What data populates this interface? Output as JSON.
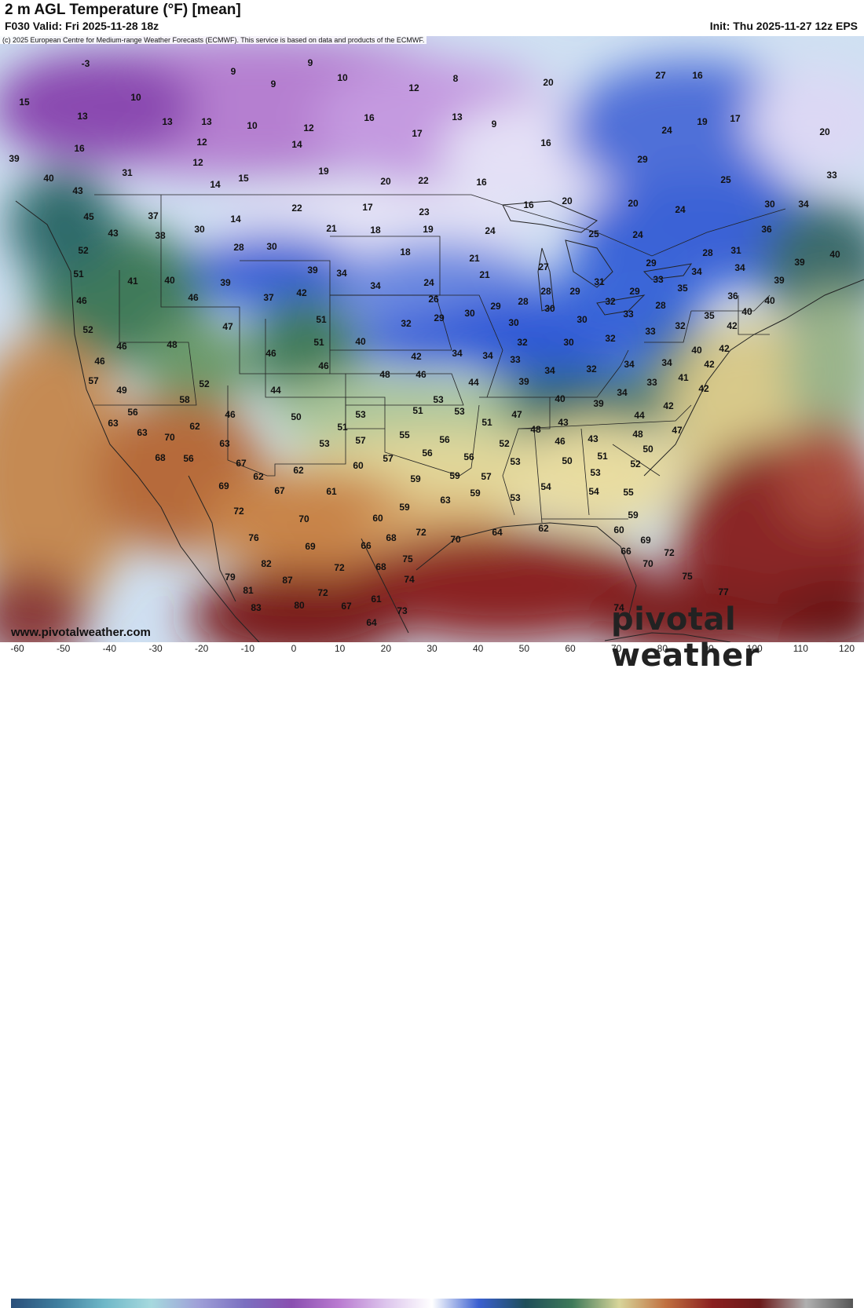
{
  "header": {
    "title": "2 m AGL Temperature (°F) [mean]",
    "valid": "F030 Valid: Fri 2025-11-28 18z",
    "init": "Init: Thu 2025-11-27 12z EPS",
    "copyright": "(c) 2025 European Centre for Medium-range Weather Forecasts (ECMWF). This service is based on data and products of the ECMWF."
  },
  "footer": {
    "website": "www.pivotalweather.com",
    "brand": "pivotal weather"
  },
  "colorbar": {
    "labels": [
      "-60",
      "-50",
      "-40",
      "-30",
      "-20",
      "-10",
      "0",
      "10",
      "20",
      "30",
      "40",
      "50",
      "60",
      "70",
      "80",
      "90",
      "100",
      "110",
      "120"
    ],
    "colors": [
      "#2a4f7a",
      "#3f7e9e",
      "#6fb8c8",
      "#a6d9de",
      "#9fa0d8",
      "#7b6fc0",
      "#8a4fb0",
      "#b97ad0",
      "#dcc4ec",
      "#ffffff",
      "#3a5fd0",
      "#1f4f5a",
      "#3f7a5a",
      "#d8d59a",
      "#c07040",
      "#8a2020",
      "#6a1a1a",
      "#b0b0b0",
      "#555555"
    ]
  },
  "map": {
    "points": [
      [
        "-3",
        109,
        82
      ],
      [
        "9",
        395,
        81
      ],
      [
        "8",
        580,
        101
      ],
      [
        "9",
        297,
        92
      ],
      [
        "10",
        436,
        100
      ],
      [
        "9",
        348,
        108
      ],
      [
        "20",
        698,
        106
      ],
      [
        "27",
        841,
        97
      ],
      [
        "16",
        888,
        97
      ],
      [
        "15",
        31,
        131
      ],
      [
        "10",
        173,
        125
      ],
      [
        "12",
        527,
        113
      ],
      [
        "13",
        105,
        149
      ],
      [
        "13",
        213,
        156
      ],
      [
        "13",
        263,
        156
      ],
      [
        "10",
        321,
        161
      ],
      [
        "12",
        393,
        164
      ],
      [
        "16",
        470,
        151
      ],
      [
        "17",
        531,
        171
      ],
      [
        "13",
        582,
        150
      ],
      [
        "9",
        629,
        159
      ],
      [
        "16",
        695,
        183
      ],
      [
        "24",
        849,
        167
      ],
      [
        "19",
        894,
        156
      ],
      [
        "17",
        936,
        152
      ],
      [
        "20",
        1050,
        169
      ],
      [
        "16",
        101,
        190
      ],
      [
        "12",
        257,
        182
      ],
      [
        "14",
        378,
        185
      ],
      [
        "39",
        18,
        203
      ],
      [
        "31",
        162,
        221
      ],
      [
        "12",
        252,
        208
      ],
      [
        "15",
        310,
        228
      ],
      [
        "14",
        274,
        236
      ],
      [
        "19",
        412,
        219
      ],
      [
        "20",
        491,
        232
      ],
      [
        "22",
        539,
        231
      ],
      [
        "16",
        613,
        233
      ],
      [
        "29",
        818,
        204
      ],
      [
        "25",
        924,
        230
      ],
      [
        "33",
        1059,
        224
      ],
      [
        "40",
        62,
        228
      ],
      [
        "43",
        99,
        244
      ],
      [
        "45",
        113,
        277
      ],
      [
        "37",
        195,
        276
      ],
      [
        "14",
        300,
        280
      ],
      [
        "22",
        378,
        266
      ],
      [
        "17",
        468,
        265
      ],
      [
        "23",
        540,
        271
      ],
      [
        "16",
        673,
        262
      ],
      [
        "20",
        722,
        257
      ],
      [
        "20",
        806,
        260
      ],
      [
        "24",
        866,
        268
      ],
      [
        "30",
        980,
        261
      ],
      [
        "34",
        1023,
        261
      ],
      [
        "43",
        144,
        298
      ],
      [
        "38",
        204,
        301
      ],
      [
        "30",
        254,
        293
      ],
      [
        "21",
        422,
        292
      ],
      [
        "18",
        478,
        294
      ],
      [
        "19",
        545,
        293
      ],
      [
        "24",
        624,
        295
      ],
      [
        "25",
        756,
        299
      ],
      [
        "24",
        812,
        300
      ],
      [
        "36",
        976,
        293
      ],
      [
        "52",
        106,
        320
      ],
      [
        "28",
        304,
        316
      ],
      [
        "30",
        346,
        315
      ],
      [
        "18",
        516,
        322
      ],
      [
        "21",
        604,
        330
      ],
      [
        "28",
        901,
        323
      ],
      [
        "31",
        937,
        320
      ],
      [
        "40",
        1063,
        325
      ],
      [
        "39",
        1018,
        335
      ],
      [
        "51",
        100,
        350
      ],
      [
        "41",
        169,
        359
      ],
      [
        "40",
        216,
        358
      ],
      [
        "39",
        287,
        361
      ],
      [
        "39",
        398,
        345
      ],
      [
        "34",
        435,
        349
      ],
      [
        "24",
        546,
        361
      ],
      [
        "21",
        617,
        351
      ],
      [
        "27",
        692,
        341
      ],
      [
        "29",
        829,
        336
      ],
      [
        "34",
        887,
        347
      ],
      [
        "34",
        942,
        342
      ],
      [
        "39",
        992,
        358
      ],
      [
        "46",
        104,
        384
      ],
      [
        "46",
        246,
        380
      ],
      [
        "37",
        342,
        380
      ],
      [
        "42",
        384,
        374
      ],
      [
        "34",
        478,
        365
      ],
      [
        "26",
        552,
        382
      ],
      [
        "28",
        695,
        372
      ],
      [
        "31",
        763,
        360
      ],
      [
        "29",
        732,
        372
      ],
      [
        "32",
        777,
        385
      ],
      [
        "29",
        808,
        372
      ],
      [
        "33",
        838,
        357
      ],
      [
        "35",
        869,
        368
      ],
      [
        "36",
        933,
        378
      ],
      [
        "40",
        980,
        384
      ],
      [
        "52",
        112,
        421
      ],
      [
        "47",
        290,
        417
      ],
      [
        "51",
        409,
        408
      ],
      [
        "29",
        559,
        406
      ],
      [
        "32",
        517,
        413
      ],
      [
        "30",
        598,
        400
      ],
      [
        "29",
        631,
        391
      ],
      [
        "28",
        666,
        385
      ],
      [
        "30",
        700,
        394
      ],
      [
        "30",
        741,
        408
      ],
      [
        "33",
        800,
        401
      ],
      [
        "28",
        841,
        390
      ],
      [
        "32",
        866,
        416
      ],
      [
        "35",
        903,
        403
      ],
      [
        "40",
        951,
        398
      ],
      [
        "42",
        932,
        416
      ],
      [
        "33",
        828,
        423
      ],
      [
        "46",
        155,
        442
      ],
      [
        "48",
        219,
        440
      ],
      [
        "51",
        406,
        437
      ],
      [
        "40",
        459,
        436
      ],
      [
        "30",
        654,
        412
      ],
      [
        "32",
        665,
        437
      ],
      [
        "30",
        724,
        437
      ],
      [
        "32",
        777,
        432
      ],
      [
        "40",
        887,
        447
      ],
      [
        "42",
        922,
        445
      ],
      [
        "46",
        127,
        461
      ],
      [
        "46",
        345,
        451
      ],
      [
        "46",
        412,
        467
      ],
      [
        "42",
        530,
        455
      ],
      [
        "34",
        582,
        451
      ],
      [
        "34",
        621,
        454
      ],
      [
        "33",
        656,
        459
      ],
      [
        "34",
        700,
        473
      ],
      [
        "32",
        753,
        471
      ],
      [
        "34",
        801,
        465
      ],
      [
        "34",
        849,
        463
      ],
      [
        "42",
        903,
        465
      ],
      [
        "57",
        119,
        486
      ],
      [
        "49",
        155,
        498
      ],
      [
        "52",
        260,
        490
      ],
      [
        "48",
        490,
        478
      ],
      [
        "46",
        536,
        478
      ],
      [
        "44",
        603,
        488
      ],
      [
        "39",
        667,
        487
      ],
      [
        "41",
        870,
        482
      ],
      [
        "33",
        830,
        488
      ],
      [
        "42",
        896,
        496
      ],
      [
        "58",
        235,
        510
      ],
      [
        "44",
        351,
        498
      ],
      [
        "40",
        713,
        509
      ],
      [
        "39",
        762,
        515
      ],
      [
        "34",
        792,
        501
      ],
      [
        "42",
        851,
        518
      ],
      [
        "56",
        169,
        526
      ],
      [
        "53",
        459,
        529
      ],
      [
        "53",
        558,
        510
      ],
      [
        "51",
        532,
        524
      ],
      [
        "53",
        585,
        525
      ],
      [
        "47",
        658,
        529
      ],
      [
        "44",
        814,
        530
      ],
      [
        "63",
        144,
        540
      ],
      [
        "62",
        248,
        544
      ],
      [
        "46",
        293,
        529
      ],
      [
        "50",
        377,
        532
      ],
      [
        "51",
        436,
        545
      ],
      [
        "51",
        620,
        539
      ],
      [
        "43",
        717,
        539
      ],
      [
        "48",
        682,
        548
      ],
      [
        "43",
        755,
        560
      ],
      [
        "48",
        812,
        554
      ],
      [
        "47",
        862,
        549
      ],
      [
        "63",
        181,
        552
      ],
      [
        "70",
        216,
        558
      ],
      [
        "57",
        459,
        562
      ],
      [
        "55",
        515,
        555
      ],
      [
        "56",
        566,
        561
      ],
      [
        "46",
        713,
        563
      ],
      [
        "52",
        642,
        566
      ],
      [
        "50",
        825,
        573
      ],
      [
        "68",
        204,
        584
      ],
      [
        "56",
        240,
        585
      ],
      [
        "63",
        286,
        566
      ],
      [
        "53",
        413,
        566
      ],
      [
        "56",
        544,
        578
      ],
      [
        "50",
        722,
        588
      ],
      [
        "51",
        767,
        582
      ],
      [
        "52",
        809,
        592
      ],
      [
        "67",
        307,
        591
      ],
      [
        "57",
        494,
        585
      ],
      [
        "56",
        597,
        583
      ],
      [
        "53",
        656,
        589
      ],
      [
        "53",
        758,
        603
      ],
      [
        "62",
        329,
        608
      ],
      [
        "62",
        380,
        600
      ],
      [
        "60",
        456,
        594
      ],
      [
        "59",
        529,
        611
      ],
      [
        "59",
        579,
        607
      ],
      [
        "57",
        619,
        608
      ],
      [
        "69",
        285,
        620
      ],
      [
        "67",
        356,
        626
      ],
      [
        "61",
        422,
        627
      ],
      [
        "63",
        567,
        638
      ],
      [
        "59",
        605,
        629
      ],
      [
        "54",
        695,
        621
      ],
      [
        "54",
        756,
        627
      ],
      [
        "55",
        800,
        628
      ],
      [
        "53",
        656,
        635
      ],
      [
        "72",
        304,
        652
      ],
      [
        "70",
        387,
        662
      ],
      [
        "60",
        481,
        661
      ],
      [
        "59",
        515,
        647
      ],
      [
        "59",
        806,
        657
      ],
      [
        "76",
        323,
        686
      ],
      [
        "69",
        395,
        697
      ],
      [
        "66",
        466,
        696
      ],
      [
        "68",
        498,
        686
      ],
      [
        "72",
        536,
        679
      ],
      [
        "70",
        580,
        688
      ],
      [
        "64",
        633,
        679
      ],
      [
        "62",
        692,
        674
      ],
      [
        "60",
        788,
        676
      ],
      [
        "69",
        822,
        689
      ],
      [
        "82",
        339,
        719
      ],
      [
        "72",
        432,
        724
      ],
      [
        "68",
        485,
        723
      ],
      [
        "75",
        519,
        713
      ],
      [
        "66",
        797,
        703
      ],
      [
        "72",
        852,
        705
      ],
      [
        "70",
        825,
        719
      ],
      [
        "79",
        293,
        736
      ],
      [
        "87",
        366,
        740
      ],
      [
        "74",
        521,
        739
      ],
      [
        "75",
        875,
        735
      ],
      [
        "81",
        316,
        753
      ],
      [
        "72",
        411,
        756
      ],
      [
        "61",
        479,
        764
      ],
      [
        "77",
        921,
        755
      ],
      [
        "83",
        326,
        775
      ],
      [
        "80",
        381,
        772
      ],
      [
        "67",
        441,
        773
      ],
      [
        "73",
        512,
        779
      ],
      [
        "74",
        788,
        775
      ],
      [
        "64",
        473,
        794
      ]
    ]
  }
}
